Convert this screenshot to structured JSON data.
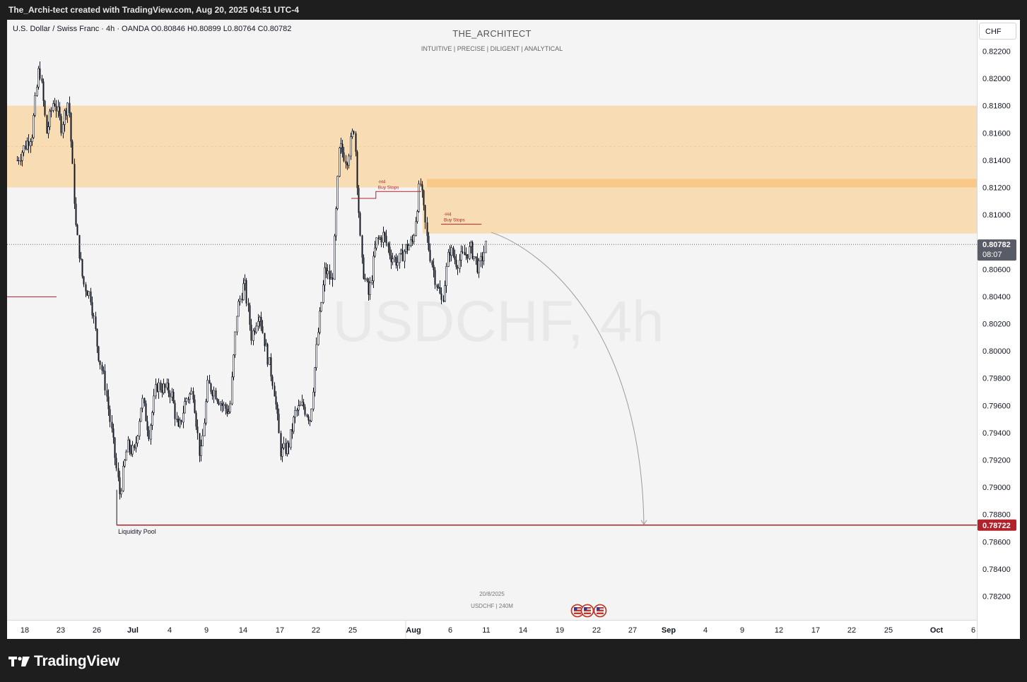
{
  "header": {
    "caption": "The_Archi-tect created with TradingView.com, Aug 20, 2025 04:51 UTC-4"
  },
  "legend": {
    "symbol_line": "U.S. Dollar / Swiss Franc · 4h · OANDA  O0.80846  H0.80899  L0.80764  C0.80782"
  },
  "branding": {
    "title": "THE_ARCHITECT",
    "tagline": "INTUITIVE | PRECISE | DILIGENT | ANALYTICAL"
  },
  "currency_button": "CHF",
  "watermark": {
    "main": "USDCHF, 4h",
    "date": "20/8/2025",
    "sub": "USDCHF | 240M"
  },
  "footer": {
    "logo_text": "TradingView"
  },
  "colors": {
    "zone": "#f8dcb4",
    "zone_strong": "#f9c98a",
    "target_line": "#b2222a",
    "bull": "#131722",
    "price_label_bg": "#595c66"
  },
  "chart_data": {
    "type": "candlestick",
    "title": "U.S. Dollar / Swiss Franc",
    "timeframe": "4h",
    "y_axis": {
      "range": [
        0.78,
        0.8235
      ],
      "ticks": [
        "0.82200",
        "0.82000",
        "0.81800",
        "0.81600",
        "0.81400",
        "0.81200",
        "0.81000",
        "0.80600",
        "0.80400",
        "0.80200",
        "0.80000",
        "0.79800",
        "0.79600",
        "0.79400",
        "0.79200",
        "0.79000",
        "0.78800",
        "0.78600",
        "0.78400",
        "0.78200"
      ]
    },
    "x_axis": {
      "ticks": [
        "18",
        "23",
        "26",
        "Jul",
        "4",
        "9",
        "14",
        "17",
        "22",
        "25",
        "Aug",
        "6",
        "11",
        "14",
        "19",
        "22",
        "27",
        "Sep",
        "4",
        "9",
        "12",
        "17",
        "22",
        "25",
        "Oct",
        "6"
      ],
      "bold_ticks": [
        "Jul",
        "Aug",
        "Sep",
        "Oct"
      ]
    },
    "price_path": [
      [
        "2025-06-17",
        0.814
      ],
      [
        "2025-06-19",
        0.816
      ],
      [
        "2025-06-20",
        0.821
      ],
      [
        "2025-06-21",
        0.816
      ],
      [
        "2025-06-22",
        0.8185
      ],
      [
        "2025-06-23",
        0.8165
      ],
      [
        "2025-06-24",
        0.8185
      ],
      [
        "2025-06-25",
        0.809
      ],
      [
        "2025-06-26",
        0.805
      ],
      [
        "2025-06-27",
        0.804
      ],
      [
        "2025-06-28",
        0.8
      ],
      [
        "2025-06-29",
        0.7975
      ],
      [
        "2025-06-30",
        0.7935
      ],
      [
        "2025-07-01",
        0.7895
      ],
      [
        "2025-07-02",
        0.793
      ],
      [
        "2025-07-03",
        0.7925
      ],
      [
        "2025-07-04",
        0.7965
      ],
      [
        "2025-07-05",
        0.794
      ],
      [
        "2025-07-06",
        0.7975
      ],
      [
        "2025-07-08",
        0.797
      ],
      [
        "2025-07-09",
        0.794
      ],
      [
        "2025-07-10",
        0.7965
      ],
      [
        "2025-07-11",
        0.797
      ],
      [
        "2025-07-12",
        0.792
      ],
      [
        "2025-07-13",
        0.7975
      ],
      [
        "2025-07-14",
        0.797
      ],
      [
        "2025-07-15",
        0.796
      ],
      [
        "2025-07-16",
        0.7955
      ],
      [
        "2025-07-17",
        0.803
      ],
      [
        "2025-07-18",
        0.805
      ],
      [
        "2025-07-19",
        0.801
      ],
      [
        "2025-07-20",
        0.803
      ],
      [
        "2025-07-21",
        0.8
      ],
      [
        "2025-07-22",
        0.7975
      ],
      [
        "2025-07-23",
        0.7925
      ],
      [
        "2025-07-24",
        0.793
      ],
      [
        "2025-07-25",
        0.7955
      ],
      [
        "2025-07-26",
        0.796
      ],
      [
        "2025-07-27",
        0.795
      ],
      [
        "2025-07-28",
        0.801
      ],
      [
        "2025-07-29",
        0.806
      ],
      [
        "2025-07-30",
        0.805
      ],
      [
        "2025-07-31",
        0.815
      ],
      [
        "2025-08-01",
        0.814
      ],
      [
        "2025-08-02",
        0.8165
      ],
      [
        "2025-08-03",
        0.8065
      ],
      [
        "2025-08-04",
        0.804
      ],
      [
        "2025-08-05",
        0.808
      ],
      [
        "2025-08-06",
        0.8085
      ],
      [
        "2025-08-07",
        0.807
      ],
      [
        "2025-08-08",
        0.8065
      ],
      [
        "2025-08-09",
        0.8075
      ],
      [
        "2025-08-10",
        0.808
      ],
      [
        "2025-08-11",
        0.8125
      ],
      [
        "2025-08-12",
        0.808
      ],
      [
        "2025-08-13",
        0.8055
      ],
      [
        "2025-08-14",
        0.8035
      ],
      [
        "2025-08-15",
        0.8075
      ],
      [
        "2025-08-16",
        0.8065
      ],
      [
        "2025-08-17",
        0.807
      ],
      [
        "2025-08-18",
        0.8075
      ],
      [
        "2025-08-19",
        0.806
      ],
      [
        "2025-08-20",
        0.8078
      ]
    ],
    "current_price": {
      "value": 0.80782,
      "label": "0.80782",
      "countdown": "08:07"
    },
    "zones": [
      {
        "name": "supply-zone-upper",
        "from": 0.812,
        "to": 0.818
      },
      {
        "name": "supply-zone-lower",
        "from": 0.80862,
        "to": 0.81262
      },
      {
        "name": "supply-zone-band",
        "from": 0.812,
        "to": 0.81262
      }
    ],
    "annotations": [
      {
        "text_1": "-H4",
        "text_2": "Buy Stops",
        "level": 0.8117
      },
      {
        "text_1": "-H4",
        "text_2": "Buy Stops",
        "level": 0.8093
      },
      {
        "text": "Liquidity Pool",
        "level": 0.78722
      }
    ],
    "target": {
      "value": 0.78722,
      "label": "0.78722"
    },
    "projection": "downward arrow from current price to 0.78722"
  }
}
